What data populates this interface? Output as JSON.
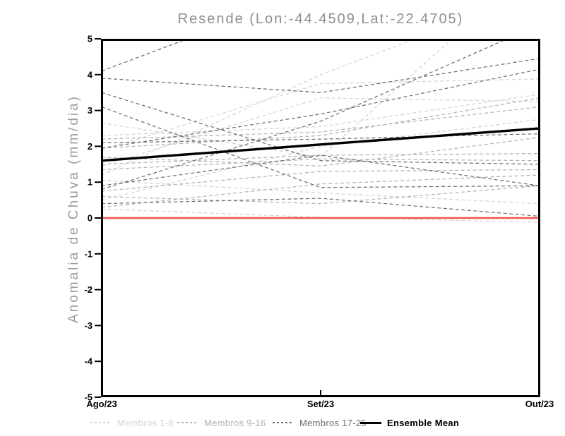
{
  "title": "Resende (Lon:-44.4509,Lat:-22.4705)",
  "axes": {
    "y_label": "Anomalia de Chuva (mm/dia)",
    "x_tick_labels": [
      "Ago/23",
      "Set/23",
      "Out/23"
    ],
    "y_tick_labels": [
      "5",
      "4",
      "3",
      "2",
      "1",
      "0",
      "-1",
      "-2",
      "-3",
      "-4",
      "-5"
    ]
  },
  "legend": {
    "entries": [
      {
        "label": "Membros 1-8",
        "color": "#d4d4d4",
        "style": "dashed"
      },
      {
        "label": "Membros 9-16",
        "color": "#b2b2b2",
        "style": "dashed"
      },
      {
        "label": "Membros 17-25",
        "color": "#6f6f6f",
        "style": "dashed"
      },
      {
        "label": "Ensemble Mean",
        "color": "#000000",
        "style": "solid"
      }
    ]
  },
  "chart_data": {
    "type": "line",
    "title": "Resende (Lon:-44.4509,Lat:-22.4705)",
    "ylabel": "Anomalia de Chuva (mm/dia)",
    "xlabel": "",
    "x_categories": [
      "Ago/23",
      "Set/23",
      "Out/23"
    ],
    "ylim": [
      -5,
      5
    ],
    "y_tick_step": 1,
    "grid": false,
    "legend_position": "bottom",
    "zero_line": {
      "y": 0,
      "color": "#ef5350"
    },
    "member_groups": [
      {
        "name": "Membros 1-8",
        "color": "#d4d4d4",
        "line_style": "dashed",
        "members": [
          [
            2.65,
            1.7,
            7.2
          ],
          [
            1.2,
            4.0,
            6.3
          ],
          [
            2.3,
            2.55,
            3.45
          ],
          [
            1.9,
            3.75,
            3.88
          ],
          [
            1.45,
            3.35,
            3.25
          ],
          [
            1.05,
            0.7,
            0.4
          ],
          [
            0.5,
            2.0,
            2.75
          ],
          [
            0.25,
            0.02,
            -0.12
          ]
        ]
      },
      {
        "name": "Membros 9-16",
        "color": "#b2b2b2",
        "line_style": "dashed",
        "members": [
          [
            2.2,
            2.4,
            3.1
          ],
          [
            1.95,
            2.3,
            3.35
          ],
          [
            1.5,
            1.75,
            1.8
          ],
          [
            1.35,
            1.65,
            1.6
          ],
          [
            0.75,
            1.3,
            1.35
          ],
          [
            0.3,
            0.95,
            1.2
          ],
          [
            0.6,
            0.4,
            0.9
          ],
          [
            1.7,
            1.45,
            2.25
          ]
        ]
      },
      {
        "name": "Membros 17-25",
        "color": "#6f6f6f",
        "line_style": "dashed",
        "members": [
          [
            4.1,
            6.4,
            8.0
          ],
          [
            3.9,
            3.5,
            4.45
          ],
          [
            3.5,
            1.6,
            1.5
          ],
          [
            3.1,
            0.85,
            0.9
          ],
          [
            2.1,
            2.2,
            2.35
          ],
          [
            0.8,
            2.7,
            5.4
          ],
          [
            0.9,
            1.75,
            0.9
          ],
          [
            0.4,
            0.55,
            0.05
          ],
          [
            1.95,
            2.9,
            4.15
          ]
        ]
      }
    ],
    "ensemble_mean": {
      "name": "Ensemble Mean",
      "color": "#000000",
      "line_style": "solid",
      "values": [
        1.6,
        2.05,
        2.5
      ]
    }
  }
}
